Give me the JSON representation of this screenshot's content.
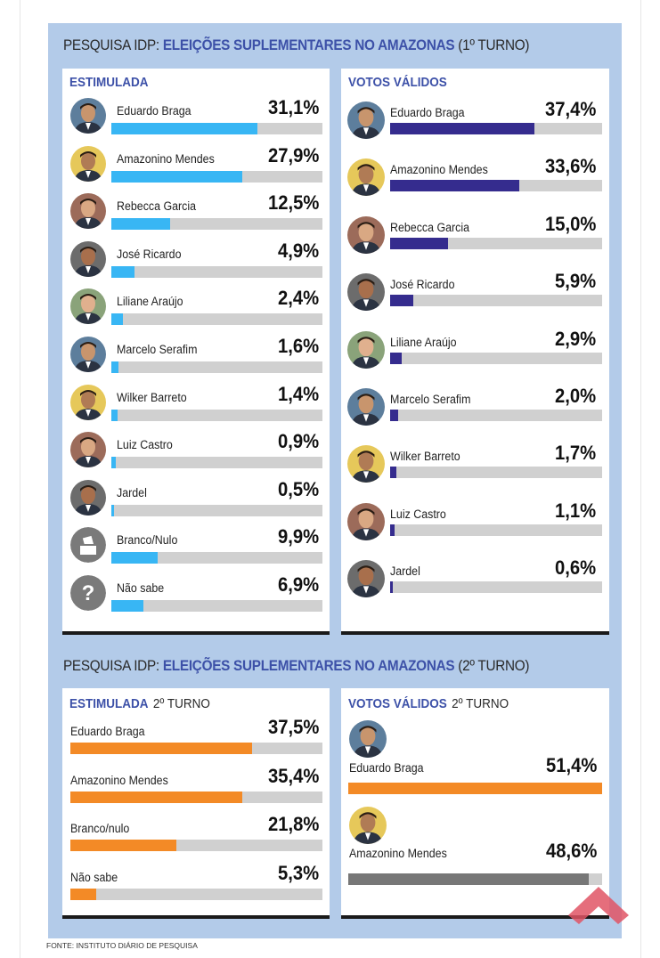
{
  "source": "FONTE: INSTITUTO DIÁRIO DE PESQUISA",
  "colors": {
    "blue_bar": "#38b6f4",
    "purple_bar": "#352c8e",
    "orange_bar": "#f38a26",
    "track": "#d0d0d0",
    "panel_bg": "#b3cbe9",
    "title_blue": "#3d51a8",
    "gray_bar": "#777777"
  },
  "section1": {
    "title_prefix": "PESQUISA IDP: ",
    "title_highlight": "ELEIÇÕES SUPLEMENTARES NO AMAZONAS",
    "title_suffix": " (1º TURNO)"
  },
  "section2": {
    "title_prefix": "PESQUISA IDP: ",
    "title_highlight": "ELEIÇÕES SUPLEMENTARES NO AMAZONAS",
    "title_suffix": " (2º TURNO)"
  },
  "chart_data": [
    {
      "type": "bar",
      "title": "ESTIMULADA",
      "subtitle": "",
      "color": "#38b6f4",
      "xlim": [
        0,
        45
      ],
      "categories": [
        "Eduardo Braga",
        "Amazonino Mendes",
        "Rebecca Garcia",
        "José Ricardo",
        "Liliane Araújo",
        "Marcelo Serafim",
        "Wilker Barreto",
        "Luiz Castro",
        "Jardel",
        "Branco/Nulo",
        "Não sabe"
      ],
      "values": [
        31.1,
        27.9,
        12.5,
        4.9,
        2.4,
        1.6,
        1.4,
        0.9,
        0.5,
        9.9,
        6.9
      ],
      "labels": [
        "31,1%",
        "27,9%",
        "12,5%",
        "4,9%",
        "2,4%",
        "1,6%",
        "1,4%",
        "0,9%",
        "0,5%",
        "9,9%",
        "6,9%"
      ],
      "avatars": [
        "photo",
        "photo",
        "photo",
        "photo",
        "photo",
        "photo",
        "photo",
        "photo",
        "photo",
        "ballot-box-icon",
        "question-icon"
      ]
    },
    {
      "type": "bar",
      "title": "VOTOS VÁLIDOS",
      "subtitle": "",
      "color": "#352c8e",
      "xlim": [
        0,
        55
      ],
      "categories": [
        "Eduardo Braga",
        "Amazonino Mendes",
        "Rebecca Garcia",
        "José Ricardo",
        "Liliane Araújo",
        "Marcelo Serafim",
        "Wilker Barreto",
        "Luiz Castro",
        "Jardel"
      ],
      "values": [
        37.4,
        33.6,
        15.0,
        5.9,
        2.9,
        2.0,
        1.7,
        1.1,
        0.6
      ],
      "labels": [
        "37,4%",
        "33,6%",
        "15,0%",
        "5,9%",
        "2,9%",
        "2,0%",
        "1,7%",
        "1,1%",
        "0,6%"
      ]
    },
    {
      "type": "bar",
      "title": "ESTIMULADA",
      "subtitle": "2º TURNO",
      "color": "#f38a26",
      "xlim": [
        0,
        52
      ],
      "categories": [
        "Eduardo Braga",
        "Amazonino Mendes",
        "Branco/nulo",
        "Não sabe"
      ],
      "values": [
        37.5,
        35.4,
        21.8,
        5.3
      ],
      "labels": [
        "37,5%",
        "35,4%",
        "21,8%",
        "5,3%"
      ]
    },
    {
      "type": "bar",
      "title": "VOTOS VÁLIDOS",
      "subtitle": "2º TURNO",
      "colors": [
        "#f38a26",
        "#777777"
      ],
      "xlim": [
        0,
        51.4
      ],
      "categories": [
        "Eduardo Braga",
        "Amazonino Mendes"
      ],
      "values": [
        51.4,
        48.6
      ],
      "labels": [
        "51,4%",
        "48,6%"
      ]
    }
  ]
}
